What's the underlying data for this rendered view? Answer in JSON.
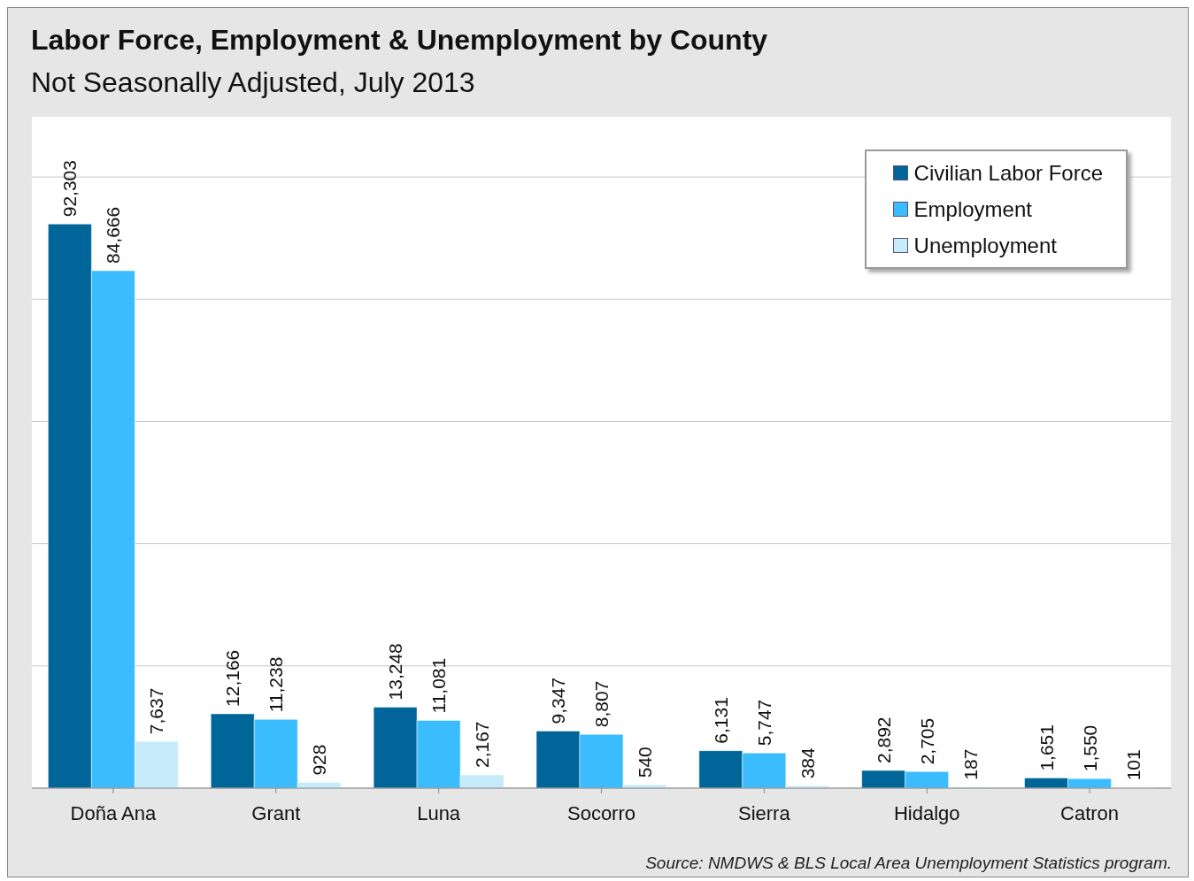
{
  "chart_data": {
    "type": "bar",
    "title": "Labor Force, Employment & Unemployment by County",
    "subtitle": "Not Seasonally Adjusted, July 2013",
    "categories": [
      "Doña Ana",
      "Grant",
      "Luna",
      "Socorro",
      "Sierra",
      "Hidalgo",
      "Catron"
    ],
    "series": [
      {
        "name": "Civilian Labor Force",
        "color": "#006699",
        "values": [
          92303,
          12166,
          13248,
          9347,
          6131,
          2892,
          1651
        ],
        "value_labels": [
          "92,303",
          "12,166",
          "13,248",
          "9,347",
          "6,131",
          "2,892",
          "1,651"
        ]
      },
      {
        "name": "Employment",
        "color": "#3bbcff",
        "values": [
          84666,
          11238,
          11081,
          8807,
          5747,
          2705,
          1550
        ],
        "value_labels": [
          "84,666",
          "11,238",
          "11,081",
          "8,807",
          "5,747",
          "2,705",
          "1,550"
        ]
      },
      {
        "name": "Unemployment",
        "color": "#c6ebfb",
        "values": [
          7637,
          928,
          2167,
          540,
          384,
          187,
          101
        ],
        "value_labels": [
          "7,637",
          "928",
          "2,167",
          "540",
          "384",
          "187",
          "101"
        ]
      }
    ],
    "ylim": [
      0,
      110000
    ],
    "yticks": [
      {
        "value": 0,
        "label": null
      },
      {
        "value": 20000,
        "label": null
      },
      {
        "value": 40000,
        "label": null
      },
      {
        "value": 60000,
        "label": null
      },
      {
        "value": 80000,
        "label": null
      },
      {
        "value": 100000,
        "label": null
      }
    ],
    "tick_labels": "x",
    "grid": "y",
    "legend": "top right",
    "annotations": [
      "Source: NMDWS & BLS Local Area Unemployment Statistics program."
    ]
  }
}
